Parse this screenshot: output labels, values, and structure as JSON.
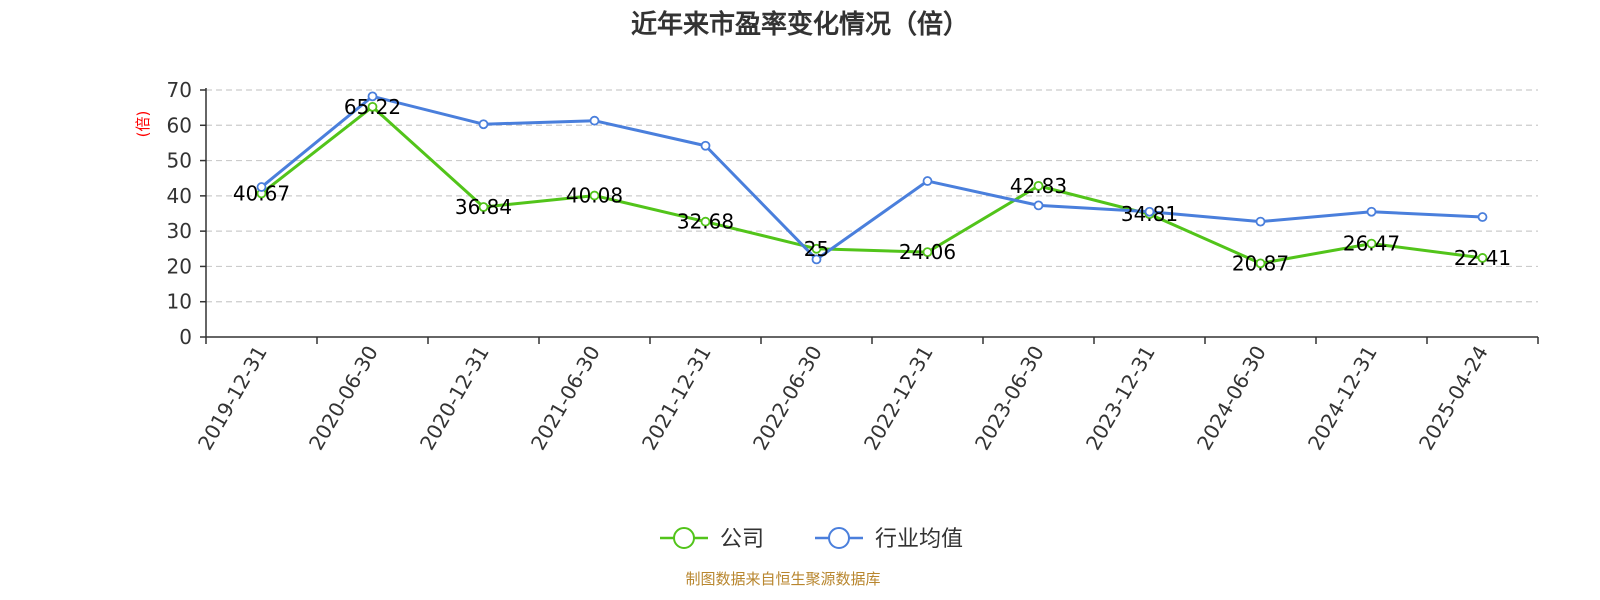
{
  "chart_data": {
    "type": "line",
    "title": "近年来市盈率变化情况（倍）",
    "ylabel": "(倍)",
    "ylim": [
      0,
      70
    ],
    "yticks": [
      0,
      10,
      20,
      30,
      40,
      50,
      60,
      70
    ],
    "grid": true,
    "legend_position": "bottom",
    "categories": [
      "2019-12-31",
      "2020-06-30",
      "2020-12-31",
      "2021-06-30",
      "2021-12-31",
      "2022-06-30",
      "2022-12-31",
      "2023-06-30",
      "2023-12-31",
      "2024-06-30",
      "2024-12-31",
      "2025-04-24"
    ],
    "series": [
      {
        "name": "公司",
        "color": "#52c41a",
        "values": [
          40.67,
          65.22,
          36.84,
          40.08,
          32.68,
          25,
          24.06,
          42.83,
          34.81,
          20.87,
          26.47,
          22.41
        ],
        "labels": [
          "40.67",
          "65.22",
          "36.84",
          "40.08",
          "32.68",
          "25",
          "24.06",
          "42.83",
          "34.81",
          "20.87",
          "26.47",
          "22.41"
        ]
      },
      {
        "name": "行业均值",
        "color": "#4a7fdc",
        "values": [
          42.5,
          68.2,
          60.3,
          61.3,
          54.2,
          22.0,
          44.2,
          37.3,
          35.5,
          32.7,
          35.5,
          34.0
        ]
      }
    ]
  },
  "source_text": "制图数据来自恒生聚源数据库"
}
